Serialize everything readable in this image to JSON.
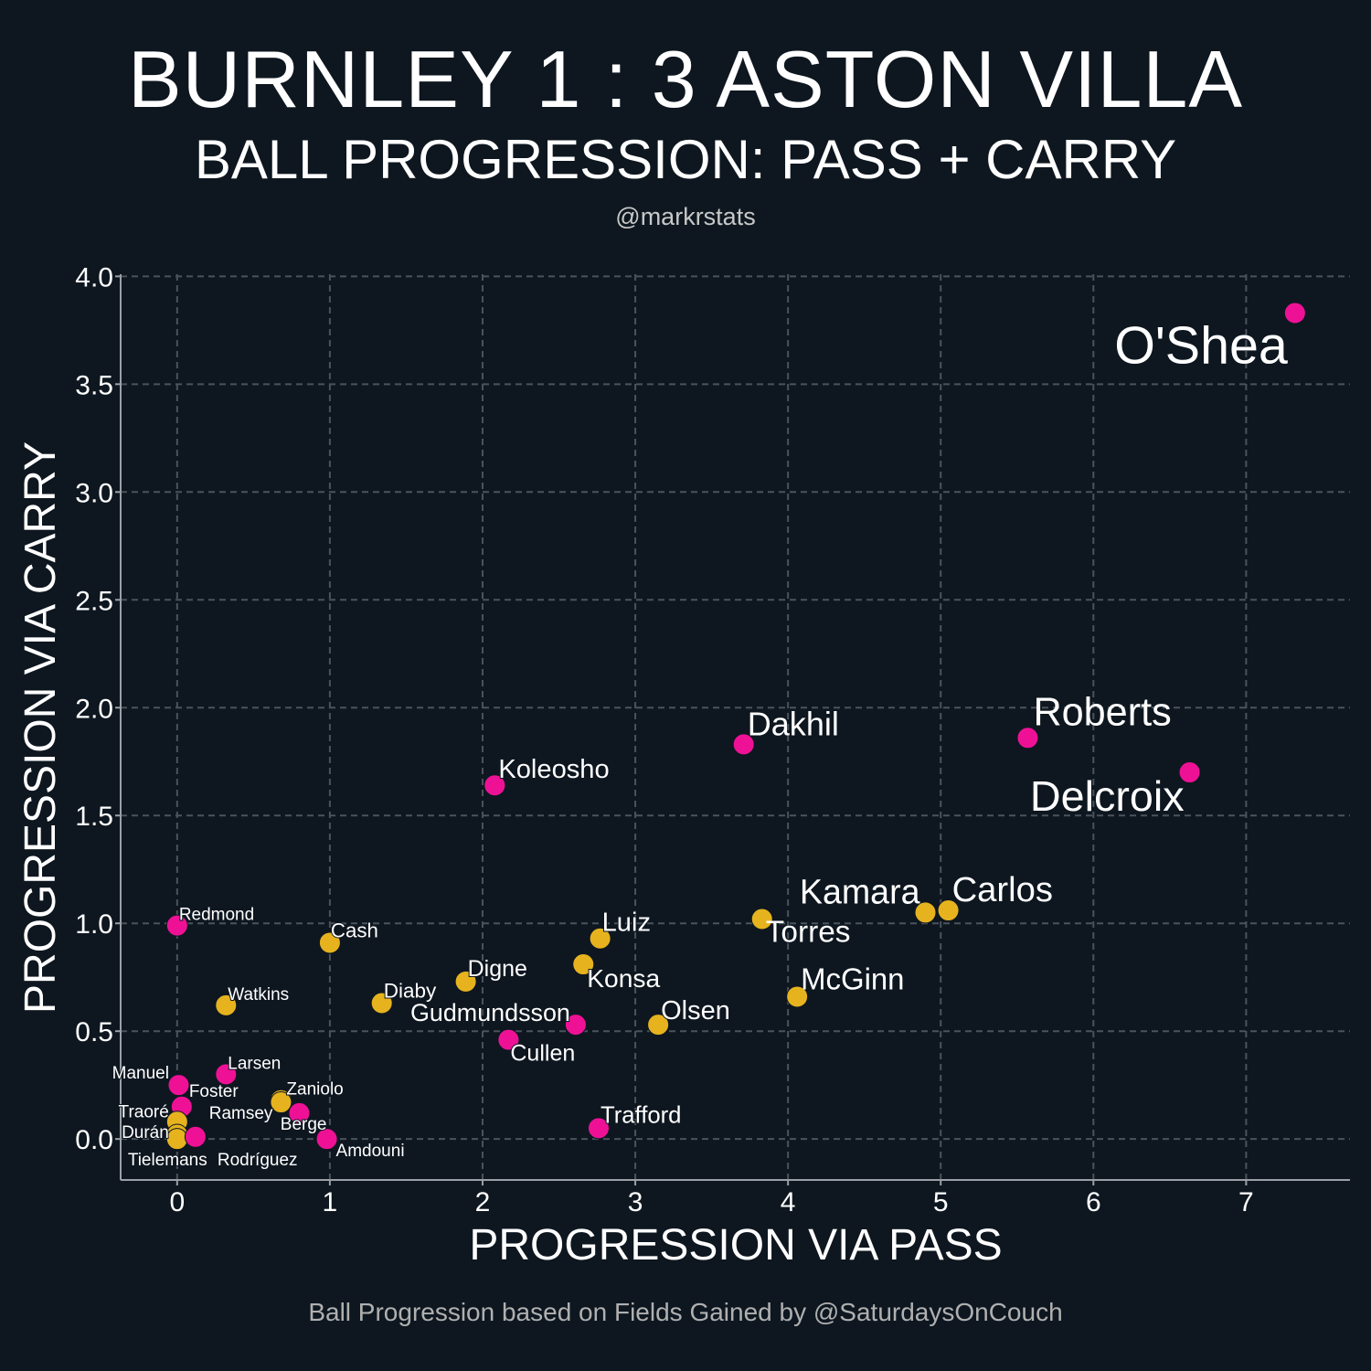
{
  "header": {
    "title": "BURNLEY 1 : 3 ASTON VILLA",
    "subtitle": "BALL PROGRESSION: PASS + CARRY",
    "handle": "@markrstats"
  },
  "footer": "Ball Progression based on Fields Gained by @SaturdaysOnCouch",
  "chart_data": {
    "type": "scatter",
    "title": "BURNLEY 1 : 3 ASTON VILLA",
    "xlabel": "PROGRESSION VIA PASS",
    "ylabel": "PROGRESSION VIA CARRY",
    "xlim": [
      -0.37,
      7.68
    ],
    "ylim": [
      -0.19,
      4.01
    ],
    "xticks": [
      "0",
      "1",
      "2",
      "3",
      "4",
      "5",
      "6",
      "7"
    ],
    "yticks": [
      "0.0",
      "0.5",
      "1.0",
      "1.5",
      "2.0",
      "2.5",
      "3.0",
      "3.5",
      "4.0"
    ],
    "grid": true,
    "team_colors": {
      "Burnley": "#ee1196",
      "Aston Villa": "#e6b31e"
    },
    "points": [
      {
        "name": "O'Shea",
        "team": "Burnley",
        "x": 7.32,
        "y": 3.83
      },
      {
        "name": "Delcroix",
        "team": "Burnley",
        "x": 6.63,
        "y": 1.7
      },
      {
        "name": "Roberts",
        "team": "Burnley",
        "x": 5.57,
        "y": 1.86
      },
      {
        "name": "Dakhil",
        "team": "Burnley",
        "x": 3.71,
        "y": 1.83
      },
      {
        "name": "Koleosho",
        "team": "Burnley",
        "x": 2.08,
        "y": 1.64
      },
      {
        "name": "Carlos",
        "team": "Aston Villa",
        "x": 5.05,
        "y": 1.06
      },
      {
        "name": "Kamara",
        "team": "Aston Villa",
        "x": 4.9,
        "y": 1.05
      },
      {
        "name": "Torres",
        "team": "Aston Villa",
        "x": 3.83,
        "y": 1.02
      },
      {
        "name": "McGinn",
        "team": "Aston Villa",
        "x": 4.06,
        "y": 0.66
      },
      {
        "name": "Luiz",
        "team": "Aston Villa",
        "x": 2.77,
        "y": 0.93
      },
      {
        "name": "Konsa",
        "team": "Aston Villa",
        "x": 2.66,
        "y": 0.81
      },
      {
        "name": "Olsen",
        "team": "Aston Villa",
        "x": 3.15,
        "y": 0.53
      },
      {
        "name": "Gudmundsson",
        "team": "Burnley",
        "x": 2.61,
        "y": 0.53
      },
      {
        "name": "Cullen",
        "team": "Burnley",
        "x": 2.17,
        "y": 0.46
      },
      {
        "name": "Trafford",
        "team": "Burnley",
        "x": 2.76,
        "y": 0.05
      },
      {
        "name": "Digne",
        "team": "Aston Villa",
        "x": 1.89,
        "y": 0.73
      },
      {
        "name": "Diaby",
        "team": "Aston Villa",
        "x": 1.34,
        "y": 0.63
      },
      {
        "name": "Cash",
        "team": "Aston Villa",
        "x": 1.0,
        "y": 0.91
      },
      {
        "name": "Redmond",
        "team": "Burnley",
        "x": 0.0,
        "y": 0.99
      },
      {
        "name": "Watkins",
        "team": "Aston Villa",
        "x": 0.32,
        "y": 0.62
      },
      {
        "name": "Larsen",
        "team": "Burnley",
        "x": 0.32,
        "y": 0.3
      },
      {
        "name": "Zaniolo",
        "team": "Aston Villa",
        "x": 0.68,
        "y": 0.18
      },
      {
        "name": "Ramsey",
        "team": "Aston Villa",
        "x": 0.68,
        "y": 0.17
      },
      {
        "name": "Berge",
        "team": "Burnley",
        "x": 0.8,
        "y": 0.12
      },
      {
        "name": "Amdouni",
        "team": "Burnley",
        "x": 0.98,
        "y": 0.0
      },
      {
        "name": "Manuel",
        "team": "Burnley",
        "x": 0.01,
        "y": 0.25
      },
      {
        "name": "Foster",
        "team": "Burnley",
        "x": 0.03,
        "y": 0.15
      },
      {
        "name": "Traoré",
        "team": "Aston Villa",
        "x": 0.0,
        "y": 0.08
      },
      {
        "name": "Durán",
        "team": "Aston Villa",
        "x": 0.0,
        "y": 0.02
      },
      {
        "name": "Tielemans",
        "team": "Aston Villa",
        "x": 0.0,
        "y": 0.0
      },
      {
        "name": "Rodríguez",
        "team": "Burnley",
        "x": 0.12,
        "y": 0.01
      }
    ]
  }
}
